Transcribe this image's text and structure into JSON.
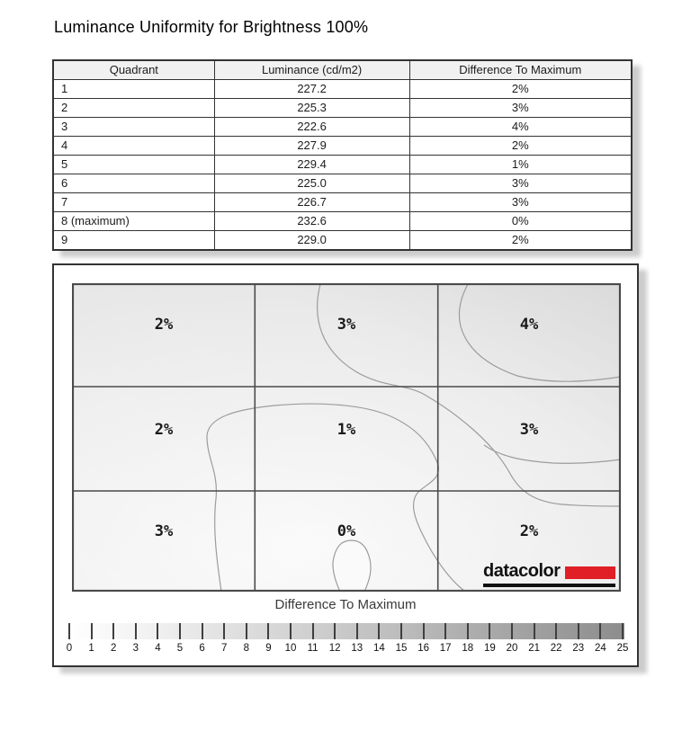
{
  "title": "Luminance Uniformity for Brightness 100%",
  "table": {
    "headers": [
      "Quadrant",
      "Luminance (cd/m2)",
      "Difference To Maximum"
    ],
    "rows": [
      [
        "1",
        "227.2",
        "2%"
      ],
      [
        "2",
        "225.3",
        "3%"
      ],
      [
        "3",
        "222.6",
        "4%"
      ],
      [
        "4",
        "227.9",
        "2%"
      ],
      [
        "5",
        "229.4",
        "1%"
      ],
      [
        "6",
        "225.0",
        "3%"
      ],
      [
        "7",
        "226.7",
        "3%"
      ],
      [
        "8 (maximum)",
        "232.6",
        "0%"
      ],
      [
        "9",
        "229.0",
        "2%"
      ]
    ]
  },
  "grid": {
    "cells": [
      "2%",
      "3%",
      "4%",
      "2%",
      "1%",
      "3%",
      "3%",
      "0%",
      "2%"
    ]
  },
  "logo": {
    "text": "datacolor",
    "accent_color": "#e01f26"
  },
  "scale": {
    "label": "Difference To Maximum",
    "ticks": [
      0,
      1,
      2,
      3,
      4,
      5,
      6,
      7,
      8,
      9,
      10,
      11,
      12,
      13,
      14,
      15,
      16,
      17,
      18,
      19,
      20,
      21,
      22,
      23,
      24,
      25
    ],
    "start_color": "#ffffff",
    "end_color": "#8d8d8d"
  },
  "chart_data": {
    "type": "heatmap",
    "title": "Luminance Uniformity for Brightness 100%",
    "quadrant_layout_rowwise": [
      [
        1,
        2,
        3
      ],
      [
        4,
        5,
        6
      ],
      [
        7,
        8,
        9
      ]
    ],
    "difference_to_maximum_percent": [
      [
        2,
        3,
        4
      ],
      [
        2,
        1,
        3
      ],
      [
        3,
        0,
        2
      ]
    ],
    "luminance_cd_m2": [
      [
        227.2,
        225.3,
        222.6
      ],
      [
        227.9,
        229.4,
        225.0
      ],
      [
        226.7,
        232.6,
        229.0
      ]
    ],
    "maximum_quadrant": 8,
    "maximum_luminance_cd_m2": 232.6,
    "colorbar": {
      "label": "Difference To Maximum",
      "min": 0,
      "max": 25,
      "tick_step": 1
    },
    "legend_position": "bottom",
    "grid": true
  }
}
